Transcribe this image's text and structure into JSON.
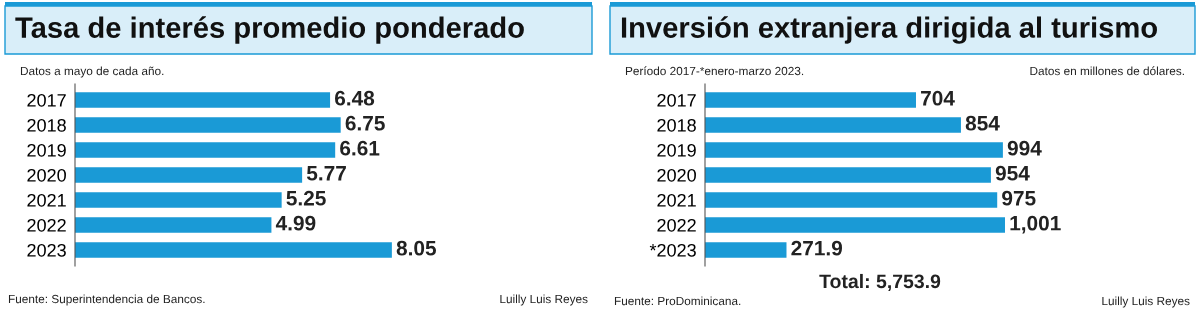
{
  "chart_data": [
    {
      "type": "bar",
      "orientation": "horizontal",
      "title": "Tasa de interés promedio ponderado",
      "subtitle": "Datos a mayo de cada año.",
      "categories": [
        "2017",
        "2018",
        "2019",
        "2020",
        "2021",
        "2022",
        "2023"
      ],
      "values": [
        6.48,
        6.75,
        6.61,
        5.77,
        5.25,
        4.99,
        8.05
      ],
      "color": "#1a9ad6",
      "data_labels": true,
      "grid": false,
      "legend": false,
      "annotations": [
        "Fuente: Superintendencia de Bancos.",
        "Luilly Luis Reyes"
      ]
    },
    {
      "type": "bar",
      "orientation": "horizontal",
      "title": "Inversión extranjera dirigida al turismo",
      "subtitle": "Período 2017-*enero-marzo 2023.",
      "categories": [
        "2017",
        "2018",
        "2019",
        "2020",
        "2021",
        "2022",
        "*2023"
      ],
      "values": [
        704,
        854,
        994,
        954,
        975,
        1001,
        271.9
      ],
      "color": "#1a9ad6",
      "value_labels": [
        "704",
        "854",
        "994",
        "954",
        "975",
        "1,001",
        "271.9"
      ],
      "grid": false,
      "legend": false,
      "annotations": [
        "Datos en millones de dólares.",
        "Total: 5,753.9",
        "Fuente: ProDominicana.",
        "Luilly Luis Reyes"
      ]
    }
  ]
}
